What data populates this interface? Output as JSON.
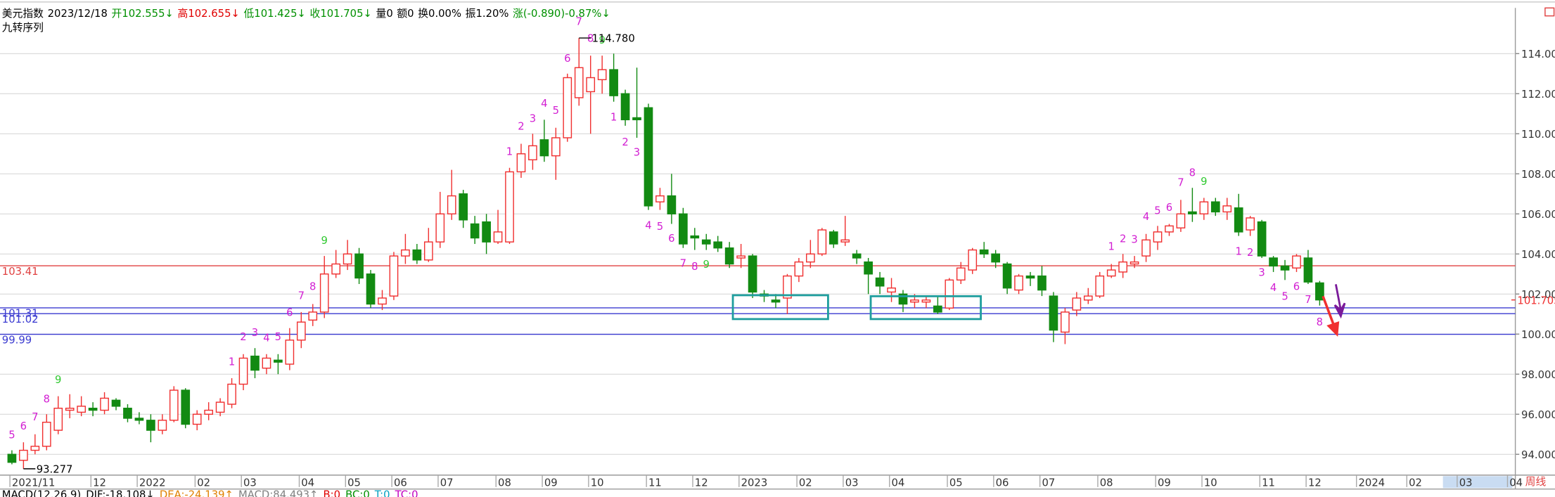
{
  "chart_data": {
    "type": "candlestick",
    "header": [
      {
        "text": "美元指数",
        "color": "#000000"
      },
      {
        "text": "2023/12/18",
        "color": "#000000"
      },
      {
        "text": "开102.555↓",
        "color": "#009000"
      },
      {
        "text": "高102.655↓",
        "color": "#e00000"
      },
      {
        "text": "低101.425↓",
        "color": "#009000"
      },
      {
        "text": "收101.705↓",
        "color": "#009000"
      },
      {
        "text": "量0",
        "color": "#000000"
      },
      {
        "text": "额0",
        "color": "#000000"
      },
      {
        "text": "换0.00%",
        "color": "#000000"
      },
      {
        "text": "振1.20%",
        "color": "#000000"
      },
      {
        "text": "涨(-0.890)-0.87%↓",
        "color": "#009000"
      }
    ],
    "subtitle": "九转序列",
    "categories": [
      "2021/11",
      null,
      null,
      null,
      null,
      null,
      null,
      "12",
      null,
      null,
      null,
      "2022",
      null,
      null,
      null,
      null,
      "02",
      null,
      null,
      null,
      "03",
      null,
      null,
      null,
      null,
      "04",
      null,
      null,
      null,
      "05",
      null,
      null,
      null,
      "06",
      null,
      null,
      null,
      "07",
      null,
      null,
      null,
      null,
      "08",
      null,
      null,
      null,
      "09",
      null,
      null,
      null,
      "10",
      null,
      null,
      null,
      null,
      "11",
      null,
      null,
      null,
      "12",
      null,
      null,
      null,
      "2023",
      null,
      null,
      null,
      null,
      "02",
      null,
      null,
      null,
      "03",
      null,
      null,
      null,
      "04",
      null,
      null,
      null,
      null,
      "05",
      null,
      null,
      null,
      "06",
      null,
      null,
      null,
      "07",
      null,
      null,
      null,
      null,
      "08",
      null,
      null,
      null,
      null,
      "09",
      null,
      null,
      null,
      "10",
      null,
      null,
      null,
      null,
      "11",
      null,
      null,
      null,
      "12",
      null
    ],
    "future_categories": [
      "2024",
      "02",
      "03",
      "04"
    ],
    "open": [
      94.0,
      93.7,
      94.2,
      94.4,
      95.2,
      96.2,
      96.1,
      96.3,
      96.2,
      96.7,
      96.3,
      95.8,
      95.7,
      95.2,
      95.7,
      97.2,
      95.5,
      96.0,
      96.1,
      96.5,
      97.5,
      98.9,
      98.3,
      98.7,
      98.5,
      99.7,
      100.7,
      101.1,
      103.0,
      103.5,
      104.0,
      103.0,
      101.5,
      101.9,
      103.9,
      104.2,
      103.7,
      104.6,
      106.0,
      107.0,
      105.5,
      105.6,
      104.6,
      104.6,
      108.1,
      108.7,
      109.7,
      108.9,
      109.8,
      111.8,
      112.1,
      112.7,
      113.2,
      112.0,
      110.8,
      111.3,
      106.6,
      106.9,
      106.0,
      104.9,
      104.7,
      104.6,
      104.3,
      103.8,
      103.9,
      102.0,
      101.7,
      101.8,
      102.9,
      103.6,
      104.0,
      105.1,
      104.6,
      104.0,
      103.6,
      102.8,
      102.1,
      102.0,
      101.6,
      101.6,
      101.4,
      101.3,
      102.7,
      103.2,
      104.2,
      104.0,
      103.5,
      102.2,
      102.9,
      102.9,
      101.9,
      100.1,
      101.2,
      101.7,
      101.9,
      102.9,
      103.1,
      103.5,
      103.9,
      104.6,
      105.1,
      105.3,
      106.1,
      106.0,
      106.6,
      106.1,
      106.3,
      105.2,
      105.6,
      103.8,
      103.4,
      103.3,
      103.8,
      102.555
    ],
    "high": [
      94.2,
      94.6,
      95.0,
      96.0,
      96.9,
      97.0,
      96.9,
      96.6,
      97.1,
      96.8,
      96.5,
      96.1,
      96.0,
      96.0,
      97.4,
      97.3,
      96.2,
      96.6,
      96.8,
      97.8,
      99.0,
      99.3,
      99.0,
      99.0,
      100.3,
      101.1,
      101.5,
      103.9,
      104.2,
      104.7,
      104.3,
      103.2,
      102.2,
      104.1,
      105.0,
      104.5,
      105.3,
      107.1,
      108.2,
      107.2,
      105.9,
      106.0,
      106.2,
      108.3,
      109.5,
      110.0,
      110.7,
      110.3,
      113.0,
      114.78,
      113.9,
      113.9,
      114.0,
      112.2,
      113.3,
      111.5,
      107.3,
      108.0,
      106.3,
      105.3,
      105.0,
      104.9,
      104.6,
      104.5,
      104.0,
      102.2,
      102.0,
      103.0,
      103.8,
      104.7,
      105.3,
      105.2,
      105.9,
      104.2,
      103.8,
      103.1,
      102.8,
      102.2,
      102.0,
      101.9,
      101.9,
      102.8,
      103.6,
      104.3,
      104.6,
      104.2,
      103.6,
      103.0,
      103.1,
      103.4,
      102.1,
      101.3,
      102.1,
      102.3,
      103.1,
      103.5,
      104.0,
      103.9,
      105.0,
      105.4,
      105.5,
      106.7,
      107.3,
      106.8,
      106.8,
      106.8,
      107.0,
      105.9,
      105.7,
      103.9,
      103.7,
      104.0,
      104.2,
      102.655
    ],
    "low": [
      93.5,
      93.277,
      94.0,
      94.2,
      95.0,
      95.8,
      95.9,
      95.9,
      96.0,
      96.2,
      95.6,
      95.5,
      94.6,
      95.0,
      95.6,
      95.3,
      95.2,
      95.7,
      95.9,
      96.3,
      97.2,
      97.8,
      98.0,
      98.0,
      98.2,
      99.3,
      100.4,
      100.8,
      102.8,
      103.2,
      102.5,
      101.3,
      101.2,
      101.7,
      103.5,
      103.5,
      103.6,
      104.3,
      105.7,
      105.3,
      104.5,
      104.0,
      104.5,
      104.5,
      107.8,
      108.2,
      108.6,
      107.7,
      109.6,
      111.4,
      110.0,
      112.0,
      111.6,
      110.4,
      109.8,
      106.2,
      106.2,
      105.5,
      104.3,
      104.2,
      104.2,
      104.1,
      103.3,
      103.3,
      101.8,
      101.6,
      101.3,
      101.0,
      102.6,
      103.3,
      103.9,
      104.3,
      104.4,
      103.5,
      102.0,
      102.0,
      101.6,
      101.1,
      101.3,
      101.3,
      101.0,
      101.2,
      102.5,
      103.0,
      103.8,
      103.3,
      102.0,
      102.0,
      102.4,
      101.9,
      99.6,
      99.5,
      100.9,
      101.5,
      101.8,
      102.8,
      102.8,
      103.3,
      103.6,
      104.2,
      104.9,
      105.1,
      105.6,
      105.7,
      105.9,
      105.7,
      104.9,
      104.9,
      103.8,
      103.1,
      102.7,
      103.1,
      102.5,
      101.425
    ],
    "close": [
      93.6,
      94.2,
      94.4,
      95.6,
      96.3,
      96.3,
      96.4,
      96.2,
      96.8,
      96.4,
      95.8,
      95.7,
      95.2,
      95.7,
      97.2,
      95.5,
      96.0,
      96.2,
      96.6,
      97.5,
      98.8,
      98.2,
      98.8,
      98.6,
      99.7,
      100.6,
      101.1,
      103.0,
      103.5,
      104.0,
      102.8,
      101.5,
      101.8,
      103.9,
      104.2,
      103.7,
      104.6,
      106.0,
      106.9,
      105.7,
      104.8,
      104.6,
      105.1,
      108.1,
      109.0,
      109.4,
      108.9,
      109.8,
      112.8,
      113.3,
      112.8,
      113.2,
      111.9,
      110.7,
      110.7,
      106.4,
      106.9,
      106.0,
      104.5,
      104.8,
      104.5,
      104.3,
      103.5,
      103.9,
      102.1,
      101.9,
      101.6,
      102.9,
      103.6,
      104.0,
      105.2,
      104.5,
      104.7,
      103.8,
      103.0,
      102.4,
      102.3,
      101.5,
      101.7,
      101.7,
      101.1,
      102.7,
      103.3,
      104.2,
      104.0,
      103.6,
      102.3,
      102.9,
      102.8,
      102.2,
      100.2,
      101.1,
      101.8,
      101.9,
      102.9,
      103.2,
      103.6,
      103.6,
      104.7,
      105.1,
      105.4,
      106.0,
      106.0,
      106.6,
      106.1,
      106.4,
      105.1,
      105.8,
      103.9,
      103.4,
      103.2,
      103.9,
      102.6,
      101.705
    ],
    "up_color": "#f03030",
    "down_color": "#128a12",
    "td_sell": [
      "5",
      "6",
      "7",
      "8",
      "9",
      null,
      null,
      null,
      null,
      null,
      null,
      null,
      null,
      null,
      null,
      null,
      null,
      null,
      null,
      "1",
      "2",
      "3",
      "4",
      "5",
      "6",
      "7",
      "8",
      "9",
      null,
      null,
      null,
      null,
      null,
      null,
      null,
      null,
      null,
      null,
      null,
      null,
      null,
      null,
      null,
      "1",
      "2",
      "3",
      "4",
      "5",
      "6",
      "7",
      "8",
      "9",
      null,
      null,
      null,
      null,
      null,
      null,
      null,
      null,
      null,
      null,
      null,
      null,
      null,
      null,
      null,
      null,
      null,
      null,
      null,
      null,
      null,
      null,
      null,
      null,
      null,
      null,
      null,
      null,
      null,
      null,
      null,
      null,
      null,
      null,
      null,
      null,
      null,
      null,
      null,
      null,
      null,
      null,
      null,
      "1",
      "2",
      "3",
      "4",
      "5",
      "6",
      "7",
      "8",
      "9",
      null,
      null,
      null,
      null,
      null,
      null,
      null,
      null,
      null,
      null
    ],
    "td_buy": [
      null,
      null,
      null,
      null,
      null,
      null,
      null,
      null,
      null,
      null,
      null,
      null,
      null,
      null,
      null,
      null,
      null,
      null,
      null,
      null,
      null,
      null,
      null,
      null,
      null,
      null,
      null,
      null,
      null,
      null,
      null,
      null,
      null,
      null,
      null,
      null,
      null,
      null,
      null,
      null,
      null,
      null,
      null,
      null,
      null,
      null,
      null,
      null,
      null,
      null,
      null,
      null,
      "1",
      "2",
      "3",
      "4",
      "5",
      "6",
      "7",
      "8",
      "9",
      null,
      null,
      null,
      null,
      null,
      null,
      null,
      null,
      null,
      null,
      null,
      null,
      null,
      null,
      null,
      null,
      null,
      null,
      null,
      null,
      null,
      null,
      null,
      null,
      null,
      null,
      null,
      null,
      null,
      null,
      null,
      null,
      null,
      null,
      null,
      null,
      null,
      null,
      null,
      null,
      null,
      null,
      null,
      null,
      null,
      "1",
      "2",
      "3",
      "4",
      "5",
      "6",
      "7",
      "8"
    ],
    "td_color": "#d21ed2",
    "td_complete_color": "#2ec82e",
    "levels": [
      {
        "value": 103.41,
        "label": "103.41",
        "color": "#e04040"
      },
      {
        "value": 101.31,
        "label": "101.31",
        "color": "#3a3ad0"
      },
      {
        "value": 101.02,
        "label": "101.02",
        "color": "#3a3ad0"
      },
      {
        "value": 99.99,
        "label": "99.99",
        "color": "#3a3ad0"
      }
    ],
    "max_label": {
      "value": 114.78,
      "label": "114.780"
    },
    "min_label": {
      "value": 93.277,
      "label": "93.277"
    },
    "ylim": [
      92.96,
      116.28
    ],
    "yticks": [
      {
        "value": 94,
        "label": "94.000"
      },
      {
        "value": 96,
        "label": "96.000"
      },
      {
        "value": 98,
        "label": "98.000"
      },
      {
        "value": 100,
        "label": "100.000"
      },
      {
        "value": 102,
        "label": "102.000"
      },
      {
        "value": 104,
        "label": "104.000"
      },
      {
        "value": 106,
        "label": "106.000"
      },
      {
        "value": 108,
        "label": "108.000"
      },
      {
        "value": 110,
        "label": "110.000"
      },
      {
        "value": 112,
        "label": "112.000"
      },
      {
        "value": 114,
        "label": "114.000"
      }
    ],
    "grid": true,
    "period_label": "周线",
    "indicator_line": [
      {
        "text": "MACD(12,26,9)",
        "color": "#000000"
      },
      {
        "text": "DIF:-18.108↓",
        "color": "#000000"
      },
      {
        "text": "DEA:-24.139↑",
        "color": "#e08000"
      },
      {
        "text": "MACD:84.493↑",
        "color": "#808080"
      },
      {
        "text": "B:0",
        "color": "#e00000"
      },
      {
        "text": "BC:0",
        "color": "#009000"
      },
      {
        "text": "T:0",
        "color": "#00a0c0"
      },
      {
        "text": "TC:0",
        "color": "#c000c0"
      }
    ]
  }
}
